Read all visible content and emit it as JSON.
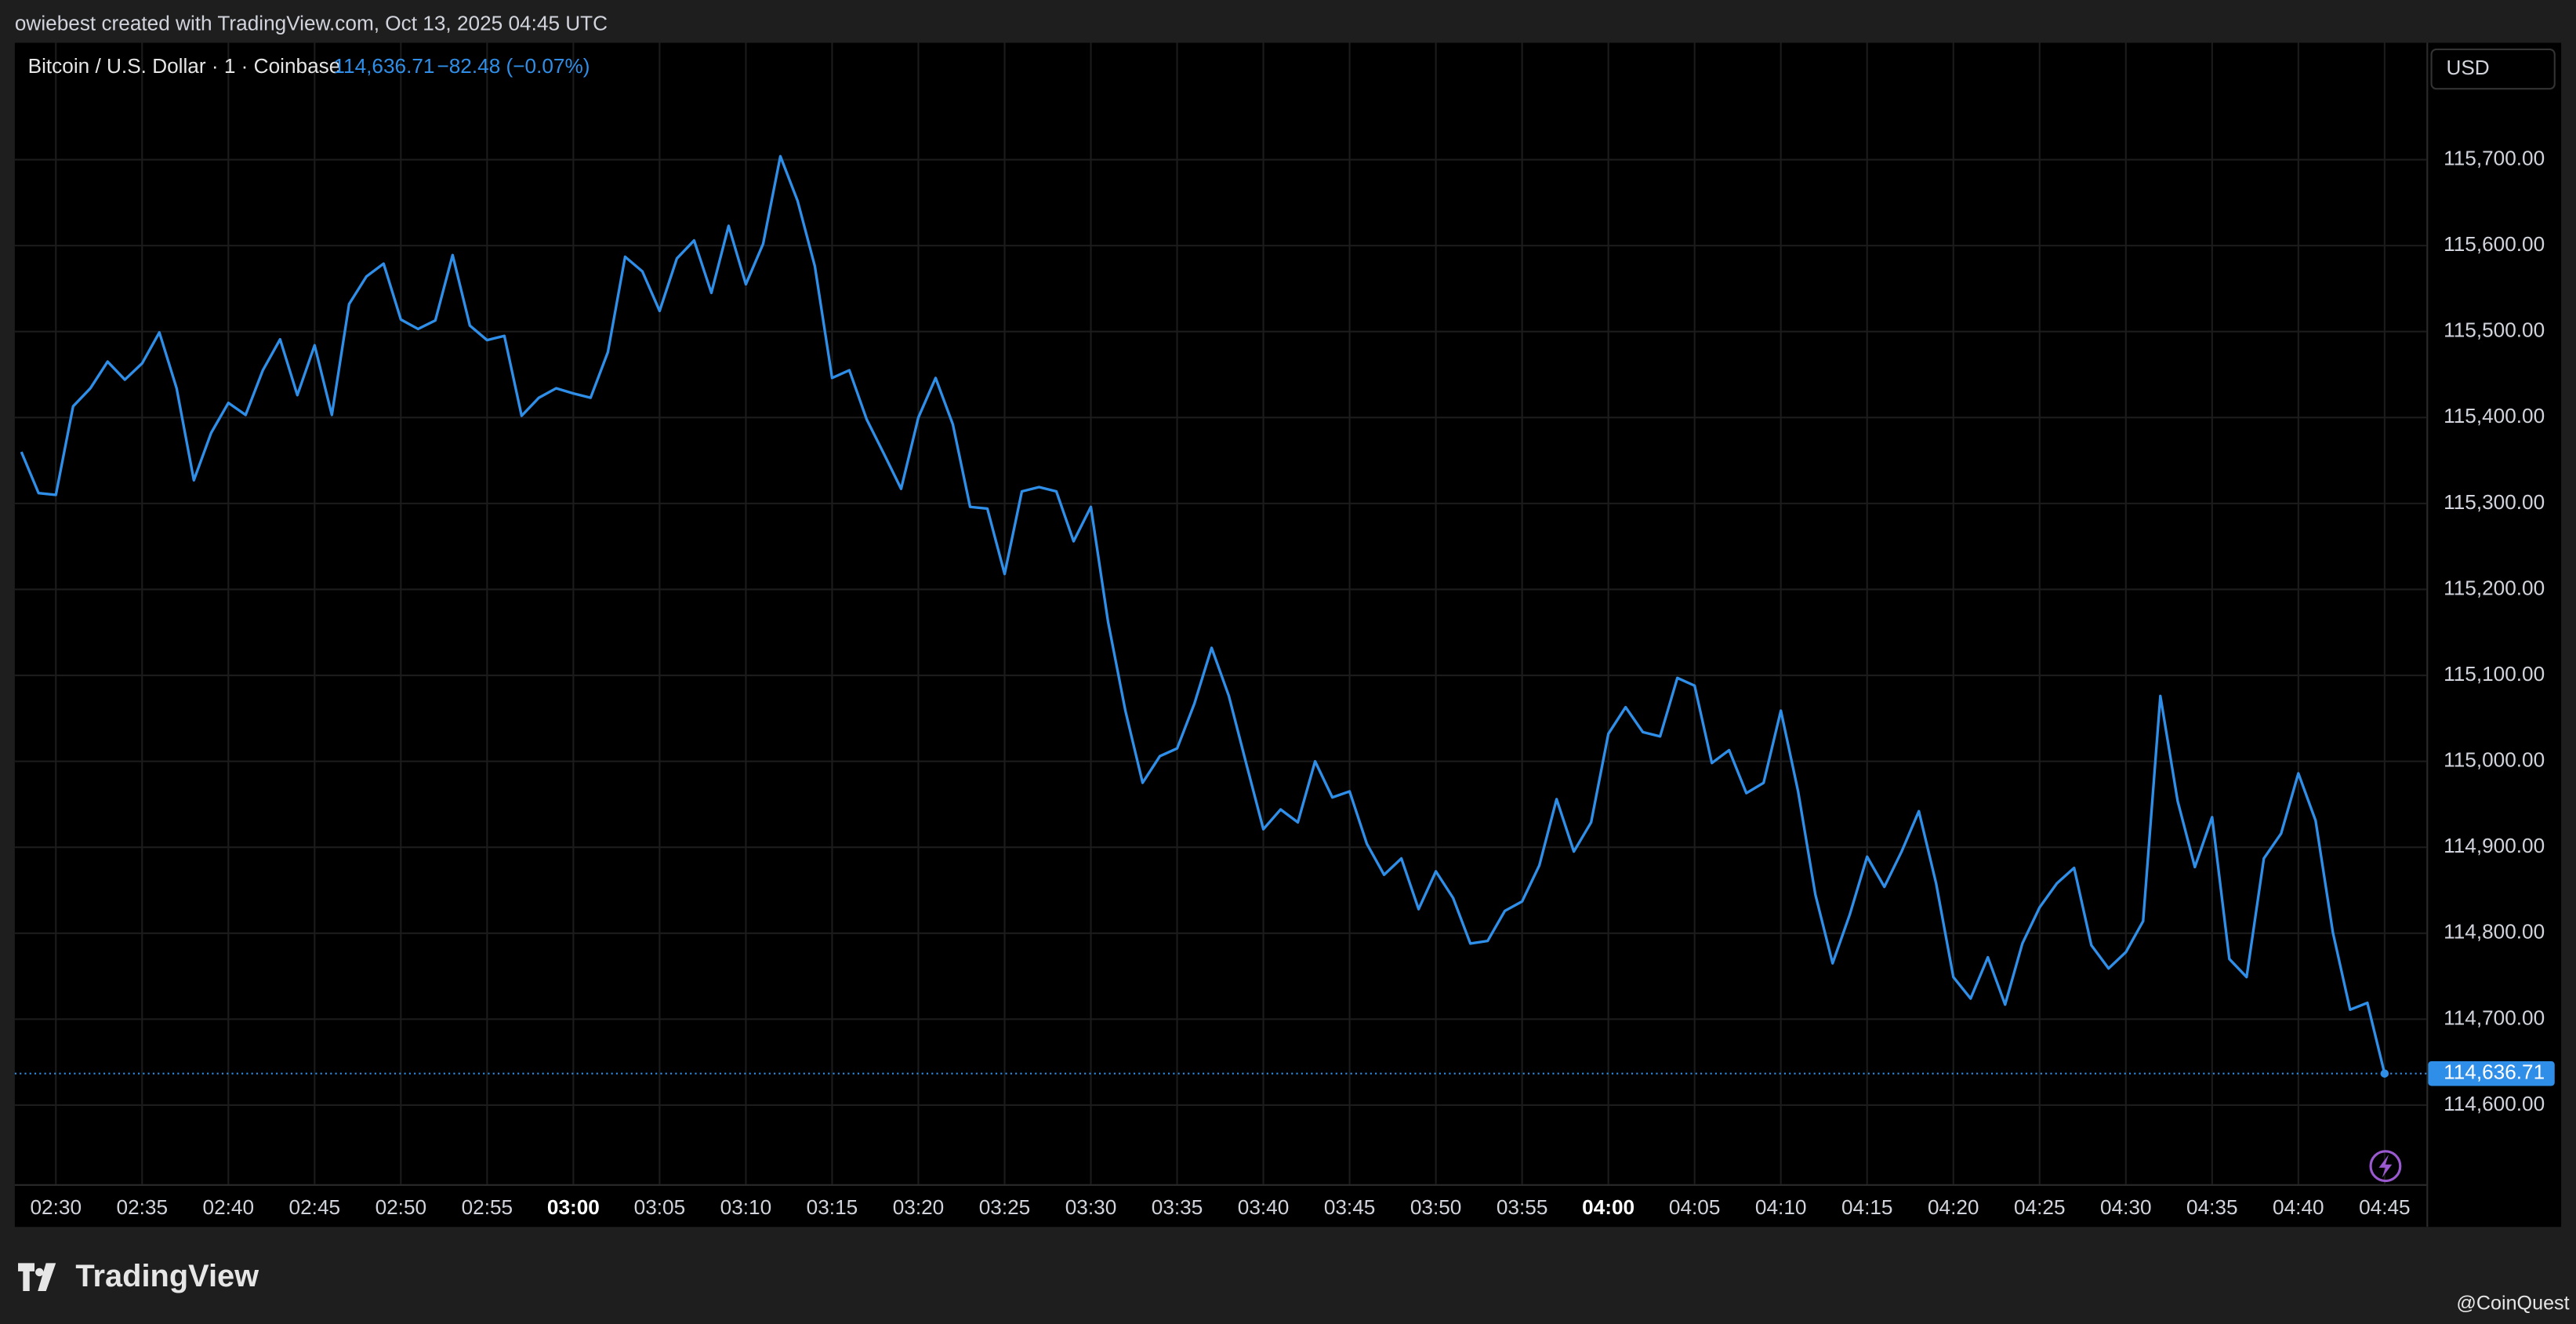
{
  "header": {
    "text": "owiebest created with TradingView.com, Oct 13, 2025 04:45 UTC"
  },
  "legend": {
    "symbol": "Bitcoin / U.S. Dollar · 1 · Coinbase",
    "price": "114,636.71",
    "change": "−82.48 (−0.07%)"
  },
  "currency_button": "USD",
  "footer": {
    "brand": "TradingView",
    "watermark": "@CoinQuest"
  },
  "chart_data": {
    "type": "line",
    "x": [
      "02:28",
      "02:29",
      "02:30",
      "02:31",
      "02:32",
      "02:33",
      "02:34",
      "02:35",
      "02:36",
      "02:37",
      "02:38",
      "02:39",
      "02:40",
      "02:41",
      "02:42",
      "02:43",
      "02:44",
      "02:45",
      "02:46",
      "02:47",
      "02:48",
      "02:49",
      "02:50",
      "02:51",
      "02:52",
      "02:53",
      "02:54",
      "02:55",
      "02:56",
      "02:57",
      "02:58",
      "02:59",
      "03:00",
      "03:01",
      "03:02",
      "03:03",
      "03:04",
      "03:05",
      "03:06",
      "03:07",
      "03:08",
      "03:09",
      "03:10",
      "03:11",
      "03:12",
      "03:13",
      "03:14",
      "03:15",
      "03:16",
      "03:17",
      "03:18",
      "03:19",
      "03:20",
      "03:21",
      "03:22",
      "03:23",
      "03:24",
      "03:25",
      "03:26",
      "03:27",
      "03:28",
      "03:29",
      "03:30",
      "03:31",
      "03:32",
      "03:33",
      "03:34",
      "03:35",
      "03:36",
      "03:37",
      "03:38",
      "03:39",
      "03:40",
      "03:41",
      "03:42",
      "03:43",
      "03:44",
      "03:45",
      "03:46",
      "03:47",
      "03:48",
      "03:49",
      "03:50",
      "03:51",
      "03:52",
      "03:53",
      "03:54",
      "03:55",
      "03:56",
      "03:57",
      "03:58",
      "03:59",
      "04:00",
      "04:01",
      "04:02",
      "04:03",
      "04:04",
      "04:05",
      "04:06",
      "04:07",
      "04:08",
      "04:09",
      "04:10",
      "04:11",
      "04:12",
      "04:13",
      "04:14",
      "04:15",
      "04:16",
      "04:17",
      "04:18",
      "04:19",
      "04:20",
      "04:21",
      "04:22",
      "04:23",
      "04:24",
      "04:25",
      "04:26",
      "04:27",
      "04:28",
      "04:29",
      "04:30",
      "04:31",
      "04:32",
      "04:33",
      "04:34",
      "04:35",
      "04:36",
      "04:37",
      "04:38",
      "04:39",
      "04:40",
      "04:41",
      "04:42",
      "04:43",
      "04:44",
      "04:45"
    ],
    "series": [
      {
        "name": "Bitcoin / U.S. Dollar",
        "color": "#2f8fe8",
        "values": [
          115360,
          115312,
          115310,
          115413,
          115434,
          115465,
          115444,
          115463,
          115499,
          115434,
          115327,
          115382,
          115417,
          115403,
          115455,
          115491,
          115426,
          115484,
          115403,
          115532,
          115564,
          115579,
          115514,
          115503,
          115513,
          115589,
          115507,
          115490,
          115495,
          115402,
          115423,
          115434,
          115428,
          115423,
          115476,
          115587,
          115570,
          115524,
          115585,
          115606,
          115545,
          115623,
          115555,
          115602,
          115704,
          115652,
          115576,
          115446,
          115455,
          115398,
          115358,
          115317,
          115400,
          115446,
          115392,
          115296,
          115294,
          115218,
          115314,
          115319,
          115314,
          115256,
          115296,
          115162,
          115059,
          114975,
          115006,
          115015,
          115067,
          115132,
          115076,
          114998,
          114921,
          114944,
          114929,
          115000,
          114958,
          114965,
          114904,
          114868,
          114887,
          114828,
          114872,
          114841,
          114788,
          114791,
          114826,
          114837,
          114879,
          114956,
          114895,
          114929,
          115032,
          115063,
          115034,
          115029,
          115097,
          115088,
          114998,
          115013,
          114963,
          114975,
          115059,
          114965,
          114845,
          114765,
          114822,
          114889,
          114854,
          114895,
          114942,
          114858,
          114749,
          114724,
          114772,
          114717,
          114788,
          114830,
          114858,
          114876,
          114786,
          114759,
          114778,
          114814,
          115076,
          114954,
          114877,
          114935,
          114770,
          114749,
          114887,
          114916,
          114986,
          114931,
          114801,
          114711,
          114719,
          114636.71
        ]
      }
    ],
    "last_value_label": "114,636.71",
    "ylim": [
      114508,
      115836
    ],
    "yticks": [
      {
        "value": 114600,
        "label": "114,600.00"
      },
      {
        "value": 114700,
        "label": "114,700.00"
      },
      {
        "value": 114800,
        "label": "114,800.00"
      },
      {
        "value": 114900,
        "label": "114,900.00"
      },
      {
        "value": 115000,
        "label": "115,000.00"
      },
      {
        "value": 115100,
        "label": "115,100.00"
      },
      {
        "value": 115200,
        "label": "115,200.00"
      },
      {
        "value": 115300,
        "label": "115,300.00"
      },
      {
        "value": 115400,
        "label": "115,400.00"
      },
      {
        "value": 115500,
        "label": "115,500.00"
      },
      {
        "value": 115600,
        "label": "115,600.00"
      },
      {
        "value": 115700,
        "label": "115,700.00"
      }
    ],
    "xticks": [
      "02:30",
      "02:35",
      "02:40",
      "02:45",
      "02:50",
      "02:55",
      "03:00",
      "03:05",
      "03:10",
      "03:15",
      "03:20",
      "03:25",
      "03:30",
      "03:35",
      "03:40",
      "03:45",
      "03:50",
      "03:55",
      "04:00",
      "04:05",
      "04:10",
      "04:15",
      "04:20",
      "04:25",
      "04:30",
      "04:35",
      "04:40",
      "04:45"
    ],
    "grid": true
  }
}
